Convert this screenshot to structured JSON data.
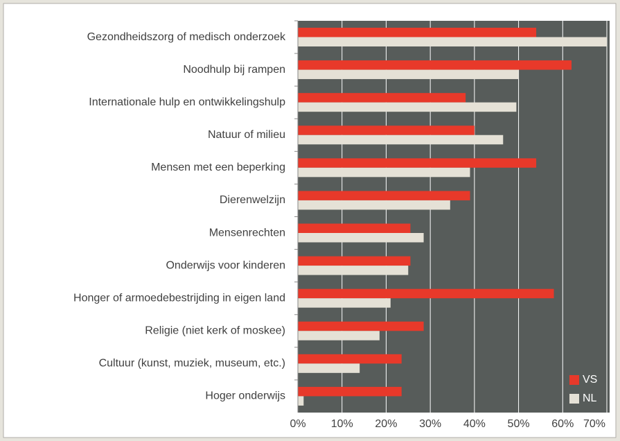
{
  "chart_data": {
    "type": "barh",
    "categories": [
      "Gezondheidszorg of medisch onderzoek",
      "Noodhulp bij rampen",
      "Internationale hulp en ontwikkelingshulp",
      "Natuur of milieu",
      "Mensen met een beperking",
      "Dierenwelzijn",
      "Mensenrechten",
      "Onderwijs voor kinderen",
      "Honger of armoedebestrijding in eigen land",
      "Religie (niet kerk of moskee)",
      "Cultuur (kunst, muziek, museum, etc.)",
      "Hoger onderwijs"
    ],
    "series": [
      {
        "name": "VS",
        "color": "#e8392a",
        "values": [
          54,
          62,
          38,
          40,
          54,
          39,
          25.5,
          25.5,
          58,
          28.5,
          23.5,
          23.5
        ]
      },
      {
        "name": "NL",
        "color": "#e5e1d6",
        "values": [
          70,
          50,
          49.5,
          46.5,
          39,
          34.5,
          28.5,
          25,
          21,
          18.5,
          14,
          1.3
        ]
      }
    ],
    "xlim": [
      0,
      70
    ],
    "xticks": [
      {
        "value": 0,
        "label": "0%"
      },
      {
        "value": 10,
        "label": "10%"
      },
      {
        "value": 20,
        "label": "20%"
      },
      {
        "value": 30,
        "label": "30%"
      },
      {
        "value": 40,
        "label": "40%"
      },
      {
        "value": 50,
        "label": "50%"
      },
      {
        "value": 60,
        "label": "60%"
      },
      {
        "value": 70,
        "label": "70%"
      }
    ],
    "grid": true,
    "legend": "lower right"
  }
}
